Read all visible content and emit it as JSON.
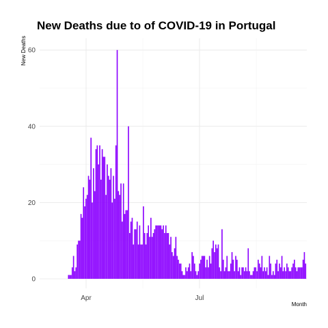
{
  "chart_data": {
    "type": "bar",
    "title": "New Deaths due to of COVID-19 in Portugal",
    "xlabel": "Month",
    "ylabel": "New Deaths",
    "bar_color": "#8B00FF",
    "x_start_date": "2020-03-16",
    "x_ticks": [
      "Apr",
      "Jul"
    ],
    "y_ticks": [
      "0",
      "20",
      "40",
      "60"
    ],
    "ylim": [
      0,
      62
    ],
    "grid": true,
    "legend": "none",
    "values": [
      1,
      1,
      1,
      3,
      6,
      2,
      3,
      9,
      10,
      10,
      17,
      16,
      24,
      19,
      21,
      22,
      27,
      26,
      37,
      20,
      29,
      23,
      34,
      35,
      30,
      35,
      26,
      34,
      32,
      32,
      22,
      30,
      27,
      26,
      29,
      20,
      27,
      21,
      35,
      60,
      23,
      22,
      25,
      15,
      25,
      17,
      18,
      18,
      40,
      12,
      15,
      16,
      9,
      13,
      13,
      15,
      9,
      14,
      9,
      9,
      19,
      12,
      9,
      12,
      14,
      11,
      16,
      11,
      12,
      13,
      14,
      14,
      14,
      14,
      14,
      13,
      14,
      12,
      14,
      12,
      12,
      9,
      11,
      7,
      6,
      8,
      11,
      6,
      5,
      4,
      4,
      2,
      1,
      1,
      3,
      2,
      3,
      4,
      2,
      7,
      6,
      4,
      2,
      1,
      2,
      4,
      5,
      6,
      6,
      6,
      3,
      5,
      3,
      6,
      4,
      8,
      10,
      7,
      9,
      8,
      9,
      3,
      2,
      13,
      5,
      2,
      3,
      6,
      2,
      2,
      4,
      7,
      5,
      2,
      6,
      5,
      2,
      3,
      1,
      3,
      3,
      2,
      3,
      2,
      8,
      2,
      1,
      1,
      2,
      3,
      3,
      2,
      5,
      4,
      3,
      6,
      2,
      3,
      2,
      3,
      1,
      6,
      4,
      1,
      2,
      1,
      4,
      5,
      2,
      4,
      3,
      6,
      2,
      3,
      2,
      4,
      3,
      2,
      2,
      3,
      4,
      5,
      3,
      2,
      3,
      3,
      3,
      3,
      5,
      7,
      4
    ]
  }
}
